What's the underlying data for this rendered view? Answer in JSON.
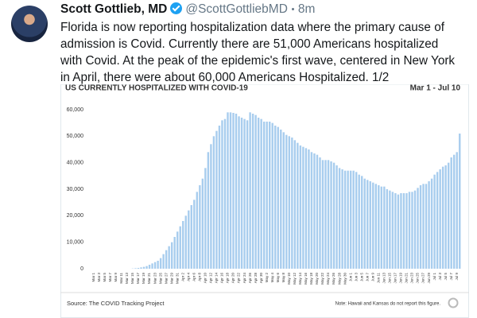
{
  "tweet": {
    "name": "Scott Gottlieb, MD",
    "handle": "@ScottGottliebMD",
    "time": "8m",
    "text_lines": [
      "Florida is now reporting hospitalization data where the primary cause of",
      "admission is Covid. Currently there are 51,000 Americans hospitalized",
      "with Covid. At the peak of the epidemic's first wave, centered in New York",
      "in April, there were about 60,000 Americans Hospitalized. 1/2"
    ]
  },
  "chart_data": {
    "type": "bar",
    "title": "US CURRENTLY HOSPITALIZED WITH COVID-19",
    "date_range": "Mar 1 - Jul 10",
    "source": "Source: The COVID Tracking Project",
    "note": "Note: Hawaii and Kansas do not report this figure.",
    "color": "#a8cdee",
    "grid": false,
    "ylim": [
      0,
      65000
    ],
    "yticks": [
      {
        "value": 0,
        "label": "0"
      },
      {
        "value": 10000,
        "label": "10,000"
      },
      {
        "value": 20000,
        "label": "20,000"
      },
      {
        "value": 30000,
        "label": "30,000"
      },
      {
        "value": 40000,
        "label": "40,000"
      },
      {
        "value": 50000,
        "label": "50,000"
      },
      {
        "value": 60000,
        "label": "60,000"
      }
    ],
    "categories": [
      "Mar 1",
      null,
      "Mar 3",
      null,
      "Mar 5",
      null,
      "Mar 7",
      null,
      "Mar 9",
      null,
      "Mar 11",
      null,
      "Mar 13",
      null,
      "Mar 15",
      null,
      "Mar 17",
      null,
      "Mar 19",
      null,
      "Mar 21",
      null,
      "Mar 23",
      null,
      "Mar 25",
      null,
      "Mar 27",
      null,
      "Mar 29",
      null,
      "Mar 31",
      null,
      "Apr 2",
      null,
      "Apr 4",
      null,
      "Apr 6",
      null,
      "Apr 8",
      null,
      "Apr 10",
      null,
      "Apr 12",
      null,
      "Apr 14",
      null,
      "Apr 16",
      null,
      "Apr 18",
      null,
      "Apr 20",
      null,
      "Apr 22",
      null,
      "Apr 24",
      null,
      "Apr 26",
      null,
      "Apr 28",
      null,
      "Apr 30",
      null,
      "May 2",
      null,
      "May 4",
      null,
      "May 6",
      null,
      "May 8",
      null,
      "May 10",
      null,
      "May 12",
      null,
      "May 14",
      null,
      "May 16",
      null,
      "May 18",
      null,
      "May 20",
      null,
      "May 22",
      null,
      "May 24",
      null,
      "May 26",
      null,
      "May 28",
      null,
      "May 30",
      null,
      "Jun 1",
      null,
      "Jun 3",
      null,
      "Jun 5",
      null,
      "Jun 7",
      null,
      "Jun 9",
      null,
      "Jun 11",
      null,
      "Jun 13",
      null,
      "Jun 15",
      null,
      "Jun 17",
      null,
      "Jun 19",
      null,
      "Jun 21",
      null,
      "Jun 23",
      null,
      "Jun 25",
      null,
      "Jun 27",
      null,
      "Jun 29",
      null,
      "Jul 1",
      null,
      "Jul 3",
      null,
      "Jul 5",
      null,
      "Jul 7",
      null,
      "Jul 9",
      null
    ],
    "values": [
      0,
      0,
      0,
      0,
      0,
      0,
      0,
      0,
      0,
      0,
      0,
      0,
      0,
      0,
      100,
      200,
      300,
      500,
      700,
      1000,
      1500,
      2000,
      2500,
      3000,
      4000,
      5500,
      7000,
      8500,
      10000,
      12000,
      14000,
      16000,
      18000,
      20000,
      22000,
      24000,
      26000,
      29000,
      31500,
      34000,
      38000,
      44000,
      47000,
      50000,
      52000,
      54000,
      56000,
      56500,
      59000,
      59000,
      58800,
      58500,
      57500,
      57000,
      56500,
      56000,
      59000,
      58500,
      58000,
      57000,
      56500,
      55500,
      55500,
      55500,
      55000,
      54000,
      53500,
      52500,
      51500,
      50500,
      50000,
      49500,
      48500,
      47500,
      46500,
      46000,
      45500,
      45000,
      44000,
      43500,
      43000,
      42000,
      41000,
      41000,
      41000,
      40500,
      40000,
      39000,
      38000,
      37500,
      37000,
      37000,
      37000,
      37000,
      36500,
      35500,
      35000,
      34000,
      33500,
      33000,
      32500,
      32000,
      31500,
      31000,
      31000,
      30000,
      29500,
      29000,
      28500,
      28000,
      28500,
      28500,
      28500,
      29000,
      29000,
      29500,
      30500,
      31500,
      32000,
      32000,
      33000,
      34000,
      35500,
      36500,
      37500,
      38500,
      39000,
      40000,
      42000,
      43000,
      44000,
      51000
    ]
  }
}
